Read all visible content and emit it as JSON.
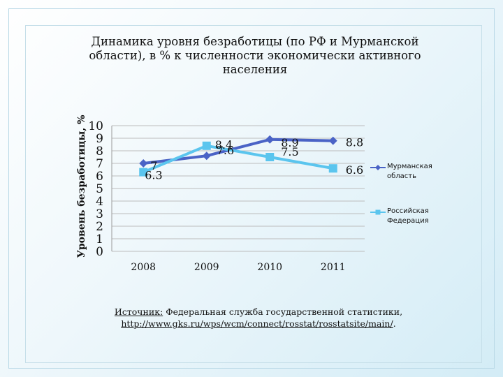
{
  "chart_data": {
    "type": "line",
    "title": "Динамика уровня безработицы (по РФ и Мурманской области), в % к численности экономически активного населения",
    "ylabel": "Уровень безработицы, %",
    "xlabel": "",
    "categories": [
      "2008",
      "2009",
      "2010",
      "2011"
    ],
    "ylim": [
      0,
      10
    ],
    "yticks": [
      "0",
      "1",
      "2",
      "3",
      "4",
      "5",
      "6",
      "7",
      "8",
      "9",
      "10"
    ],
    "grid": true,
    "legend_position": "right",
    "series": [
      {
        "name": "Мурманская область",
        "values": [
          7,
          7.6,
          8.9,
          8.8
        ],
        "color": "#4a63c6",
        "marker": "diamond"
      },
      {
        "name": "Российская Федерация",
        "values": [
          6.3,
          8.4,
          7.5,
          6.6
        ],
        "color": "#5bc5ee",
        "marker": "square"
      }
    ]
  },
  "source": {
    "label": "Источник:",
    "text": " Федеральная служба государственной статистики,",
    "link": "http://www.gks.ru/wps/wcm/connect/rosstat/rosstatsite/main/",
    "suffix": "."
  }
}
